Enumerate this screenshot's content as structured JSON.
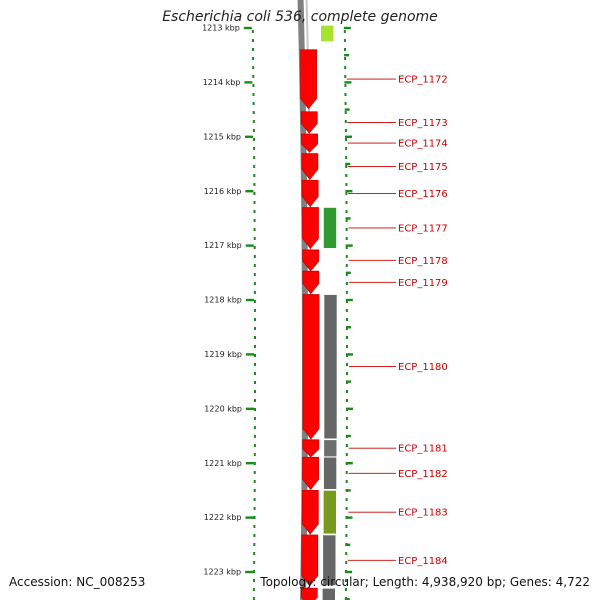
{
  "title": "Escherichia coli 536, complete genome",
  "footer": {
    "accession_label": "Accession:",
    "accession": "NC_008253",
    "topology_label": "Topology:",
    "topology": "circular",
    "length_label": "Length:",
    "length": "4,938,920 bp",
    "genes_label": "Genes:",
    "genes": "4,722"
  },
  "chart_data": {
    "type": "genome-map",
    "axis_unit": "kbp",
    "ticks": [
      {
        "kbp": 1213,
        "label": "1213 kbp"
      },
      {
        "kbp": 1214,
        "label": "1214 kbp"
      },
      {
        "kbp": 1215,
        "label": "1215 kbp"
      },
      {
        "kbp": 1216,
        "label": "1216 kbp"
      },
      {
        "kbp": 1217,
        "label": "1217 kbp"
      },
      {
        "kbp": 1218,
        "label": "1218 kbp"
      },
      {
        "kbp": 1219,
        "label": "1219 kbp"
      },
      {
        "kbp": 1220,
        "label": "1220 kbp"
      },
      {
        "kbp": 1221,
        "label": "1221 kbp"
      },
      {
        "kbp": 1222,
        "label": "1222 kbp"
      },
      {
        "kbp": 1223,
        "label": "1223 kbp"
      }
    ],
    "genes": [
      {
        "label": "ECP_1172",
        "start": 1213.4,
        "end": 1214.48,
        "strand": "-"
      },
      {
        "label": "ECP_1173",
        "start": 1214.54,
        "end": 1214.93,
        "strand": "-"
      },
      {
        "label": "ECP_1174",
        "start": 1214.95,
        "end": 1215.28,
        "strand": "-"
      },
      {
        "label": "ECP_1175",
        "start": 1215.31,
        "end": 1215.78,
        "strand": "-"
      },
      {
        "label": "ECP_1176",
        "start": 1215.8,
        "end": 1216.28,
        "strand": "-"
      },
      {
        "label": "ECP_1177",
        "start": 1216.3,
        "end": 1217.05,
        "strand": "-"
      },
      {
        "label": "ECP_1178",
        "start": 1217.08,
        "end": 1217.46,
        "strand": "-"
      },
      {
        "label": "ECP_1179",
        "start": 1217.47,
        "end": 1217.88,
        "strand": "-"
      },
      {
        "label": "ECP_1180",
        "start": 1217.9,
        "end": 1220.55,
        "strand": "-"
      },
      {
        "label": "ECP_1181",
        "start": 1220.57,
        "end": 1220.88,
        "strand": "-"
      },
      {
        "label": "ECP_1182",
        "start": 1220.89,
        "end": 1221.48,
        "strand": "-"
      },
      {
        "label": "ECP_1183",
        "start": 1221.5,
        "end": 1222.3,
        "strand": "-"
      },
      {
        "label": "ECP_1184",
        "start": 1222.32,
        "end": 1223.25,
        "strand": "-"
      },
      {
        "label": "",
        "start": 1223.3,
        "end": 1223.6,
        "strand": "-"
      }
    ],
    "category_features": [
      {
        "start": 1212.95,
        "end": 1213.25,
        "color": "#a6e22e"
      },
      {
        "start": 1216.3,
        "end": 1217.05,
        "color": "#2f9a2f"
      },
      {
        "start": 1217.9,
        "end": 1220.55,
        "color": "#666666"
      },
      {
        "start": 1220.57,
        "end": 1220.88,
        "color": "#6e6e6e"
      },
      {
        "start": 1220.89,
        "end": 1221.48,
        "color": "#666666"
      },
      {
        "start": 1221.5,
        "end": 1222.3,
        "color": "#7a9a1f"
      },
      {
        "start": 1222.32,
        "end": 1223.25,
        "color": "#666666"
      },
      {
        "start": 1223.3,
        "end": 1223.6,
        "color": "#666666"
      }
    ],
    "colors": {
      "gene": "#ff0000",
      "gene_border": "#cc0000",
      "backbone": "#808080",
      "ticks": "#1a8a1a",
      "label": "#cc0000"
    }
  }
}
